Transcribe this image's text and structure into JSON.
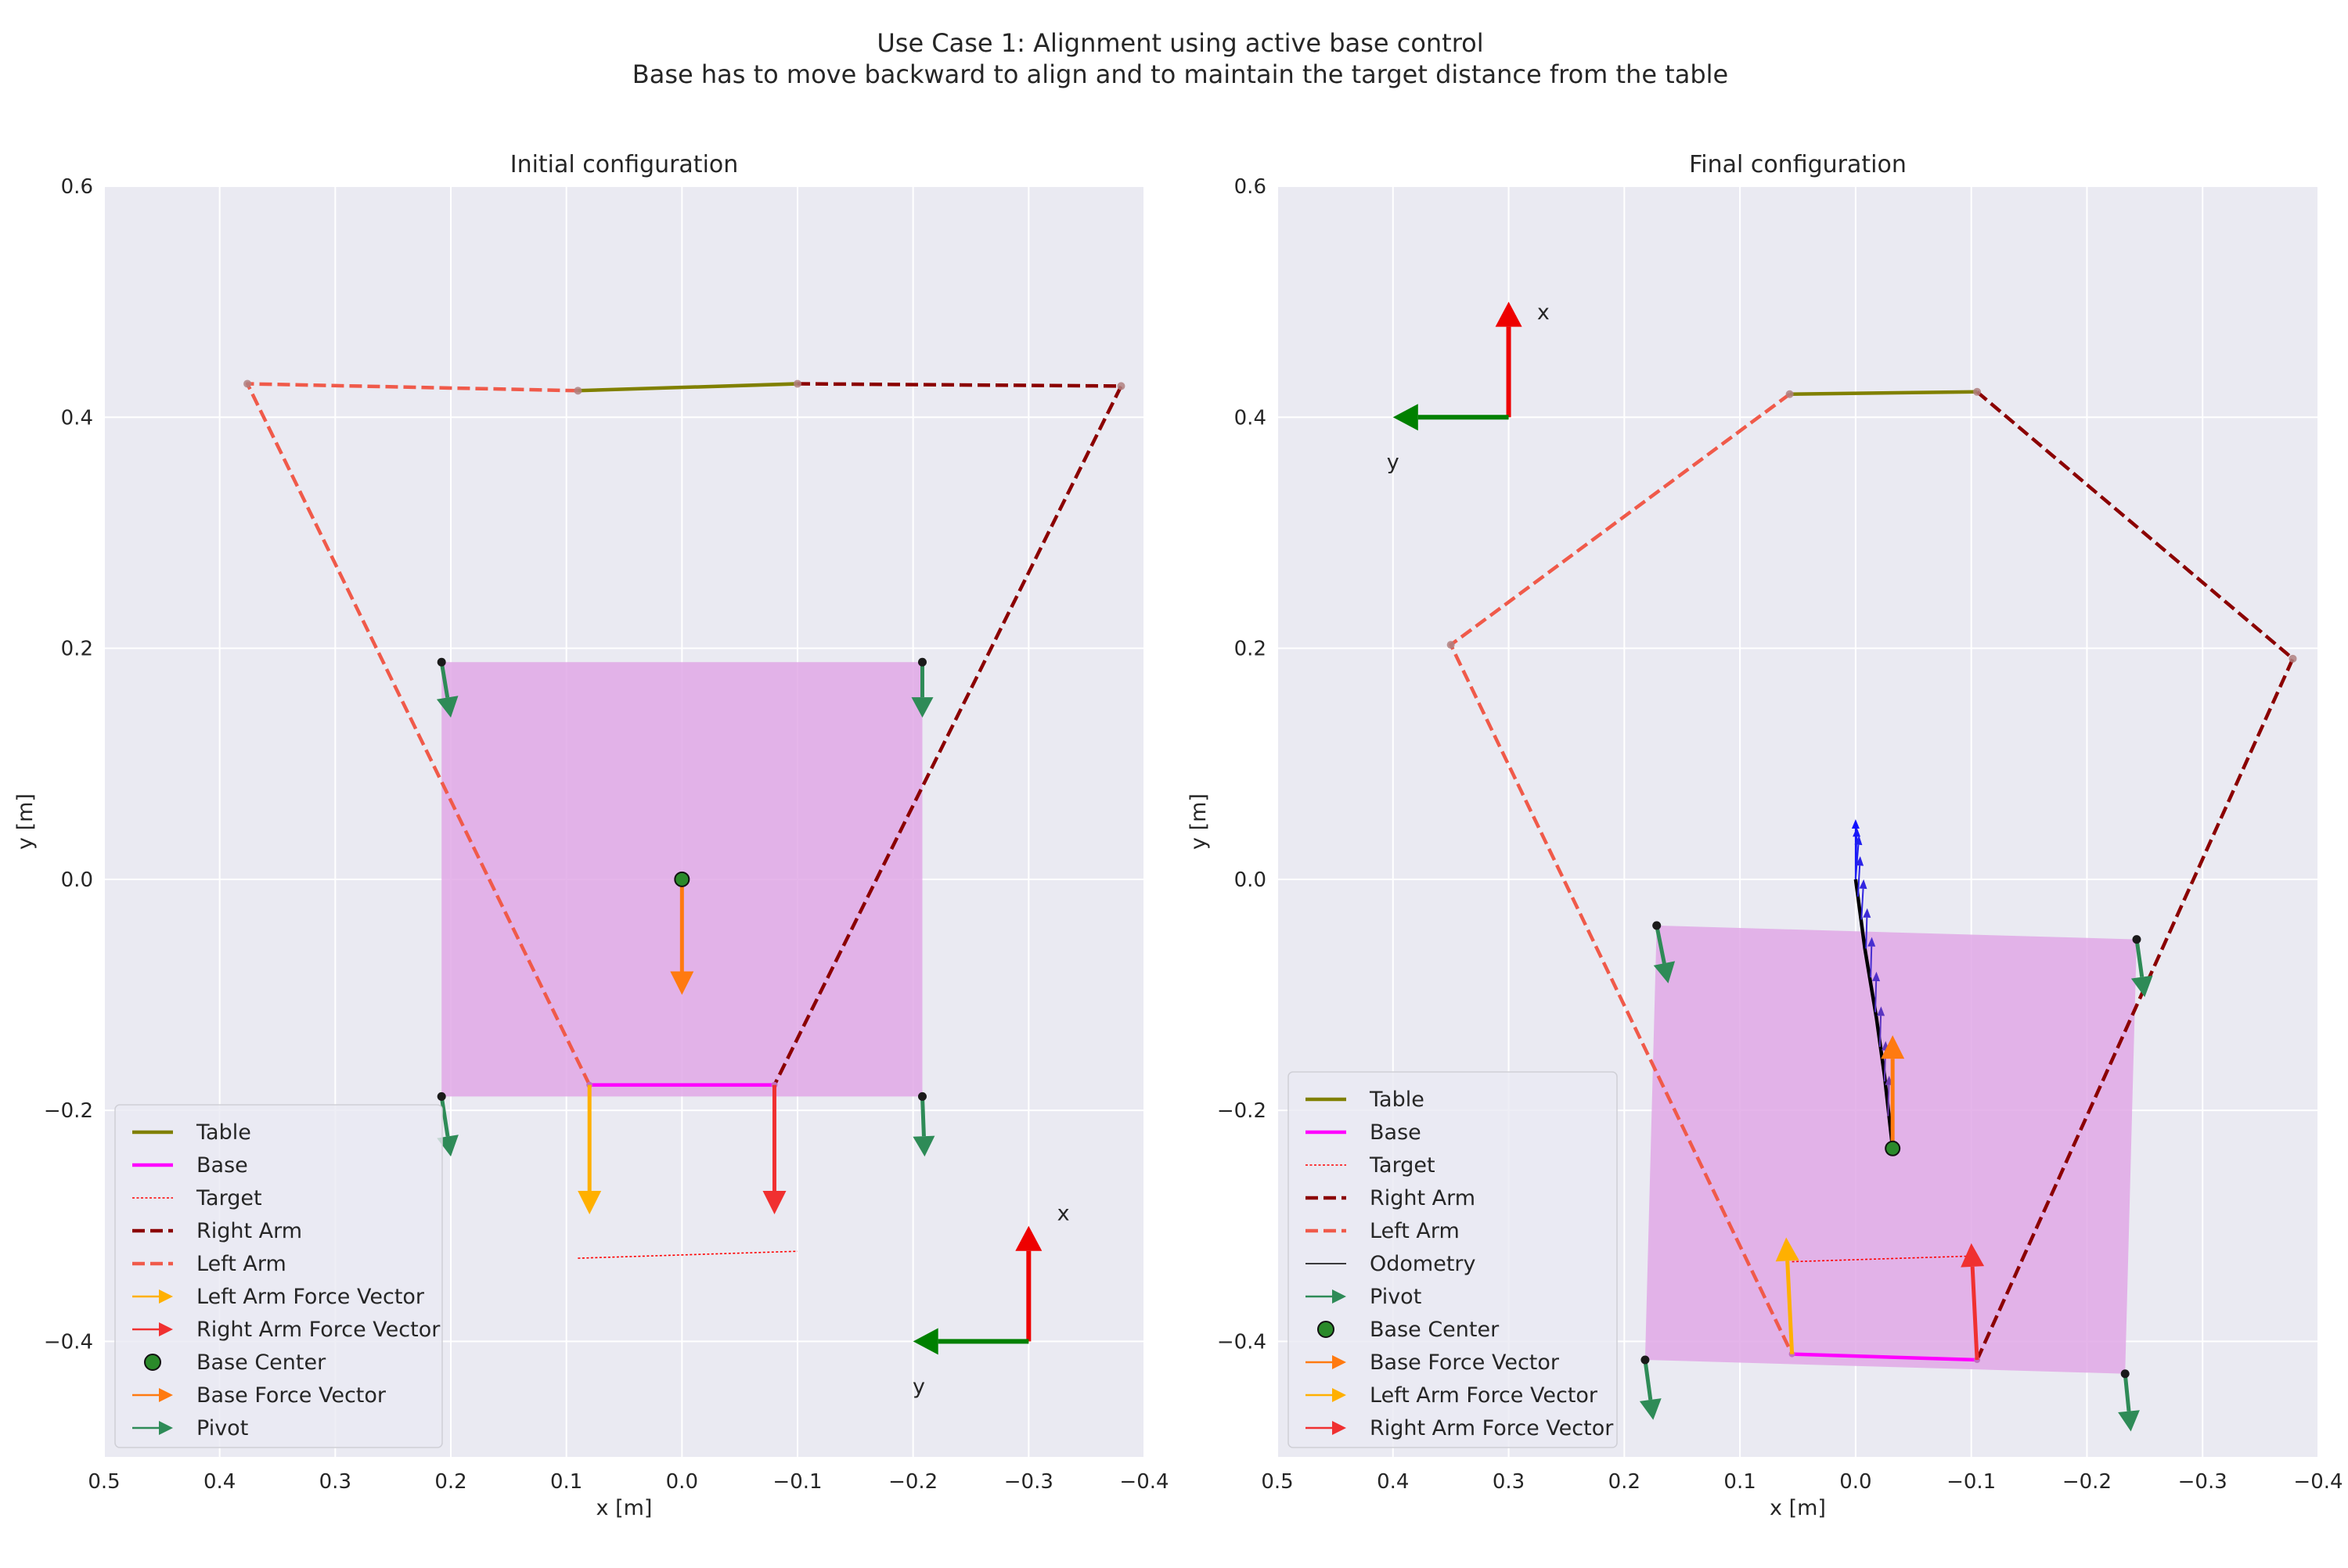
{
  "suptitle": {
    "line1": "Use Case 1: Alignment using active base control",
    "line2": "Base has to move backward to align and to maintain the target distance from the table"
  },
  "chart_data": [
    {
      "type": "line",
      "title": "Initial configuration",
      "xlabel": "x [m]",
      "ylabel": "y [m]",
      "xlim": [
        0.5,
        -0.4
      ],
      "ylim": [
        -0.5,
        0.6
      ],
      "x_ticks": [
        "0.5",
        "0.4",
        "0.3",
        "0.2",
        "0.1",
        "0.0",
        "−0.1",
        "−0.2",
        "−0.3",
        "−0.4"
      ],
      "y_ticks": [
        "−0.4",
        "−0.2",
        "0.0",
        "0.2",
        "0.4",
        "0.6"
      ],
      "grid": true,
      "legend_position": "lower-left",
      "base_area_color": "#e0a8e6",
      "base_area": [
        [
          0.208,
          0.188
        ],
        [
          -0.208,
          0.188
        ],
        [
          -0.208,
          -0.188
        ],
        [
          0.208,
          -0.188
        ]
      ],
      "series": [
        {
          "name": "Table",
          "color": "#808000",
          "style": "solid",
          "points": [
            [
              0.09,
              0.423
            ],
            [
              -0.1,
              0.429
            ]
          ]
        },
        {
          "name": "Base",
          "color": "#ff00ff",
          "style": "solid",
          "points": [
            [
              0.08,
              -0.178
            ],
            [
              -0.08,
              -0.178
            ]
          ]
        },
        {
          "name": "Target",
          "color": "#ff0000",
          "style": "dotted",
          "points": [
            [
              0.09,
              -0.328
            ],
            [
              -0.1,
              -0.322
            ]
          ]
        },
        {
          "name": "Right Arm",
          "color": "#8b0000",
          "style": "dashed",
          "points": [
            [
              -0.1,
              0.429
            ],
            [
              -0.38,
              0.427
            ],
            [
              -0.08,
              -0.178
            ]
          ]
        },
        {
          "name": "Left Arm",
          "color": "#f05a4a",
          "style": "dashed",
          "points": [
            [
              0.09,
              0.423
            ],
            [
              0.376,
              0.429
            ],
            [
              0.08,
              -0.178
            ]
          ]
        }
      ],
      "arrows": [
        {
          "name": "Left Arm Force Vector",
          "color": "#ffb000",
          "start": [
            0.08,
            -0.178
          ],
          "end": [
            0.08,
            -0.29
          ]
        },
        {
          "name": "Right Arm Force Vector",
          "color": "#f03030",
          "start": [
            -0.08,
            -0.178
          ],
          "end": [
            -0.08,
            -0.29
          ]
        },
        {
          "name": "Base Force Vector",
          "color": "#ff7a10",
          "start": [
            0.0,
            0.0
          ],
          "end": [
            0.0,
            -0.1
          ]
        },
        {
          "name": "Pivot",
          "color": "#2e8b57",
          "start": [
            0.208,
            0.188
          ],
          "end": [
            0.2,
            0.14
          ]
        },
        {
          "name": "Pivot",
          "color": "#2e8b57",
          "start": [
            -0.208,
            0.188
          ],
          "end": [
            -0.208,
            0.14
          ]
        },
        {
          "name": "Pivot",
          "color": "#2e8b57",
          "start": [
            0.208,
            -0.188
          ],
          "end": [
            0.2,
            -0.24
          ]
        },
        {
          "name": "Pivot",
          "color": "#2e8b57",
          "start": [
            -0.208,
            -0.188
          ],
          "end": [
            -0.21,
            -0.24
          ]
        }
      ],
      "pivot_points": [
        [
          0.208,
          0.188
        ],
        [
          -0.208,
          0.188
        ],
        [
          0.208,
          -0.188
        ],
        [
          -0.208,
          -0.188
        ]
      ],
      "endpoint_markers": [
        [
          0.09,
          0.423
        ],
        [
          -0.1,
          0.429
        ],
        [
          0.376,
          0.429
        ],
        [
          -0.38,
          0.427
        ]
      ],
      "base_center": [
        0.0,
        0.0
      ],
      "frame": {
        "origin": [
          -0.3,
          -0.4
        ],
        "x_axis_end": [
          -0.3,
          -0.3
        ],
        "y_axis_end": [
          -0.2,
          -0.4
        ],
        "x_label_pos": [
          -0.33,
          -0.295
        ],
        "y_label_pos": [
          -0.205,
          -0.445
        ]
      },
      "legend": [
        {
          "label": "Table",
          "kind": "line",
          "color": "#808000",
          "style": "solid"
        },
        {
          "label": "Base",
          "kind": "line",
          "color": "#ff00ff",
          "style": "solid"
        },
        {
          "label": "Target",
          "kind": "line",
          "color": "#ff0000",
          "style": "dotted"
        },
        {
          "label": "Right Arm",
          "kind": "line",
          "color": "#8b0000",
          "style": "dashed"
        },
        {
          "label": "Left Arm",
          "kind": "line",
          "color": "#f05a4a",
          "style": "dashed"
        },
        {
          "label": "Left Arm Force Vector",
          "kind": "arrow",
          "color": "#ffb000"
        },
        {
          "label": "Right Arm Force Vector",
          "kind": "arrow",
          "color": "#f03030"
        },
        {
          "label": "Base Center",
          "kind": "marker",
          "color": "#2a8a2a"
        },
        {
          "label": "Base Force Vector",
          "kind": "arrow",
          "color": "#ff7a10"
        },
        {
          "label": "Pivot",
          "kind": "arrow",
          "color": "#2e8b57"
        }
      ]
    },
    {
      "type": "line",
      "title": "Final configuration",
      "xlabel": "x [m]",
      "ylabel": "y [m]",
      "xlim": [
        0.5,
        -0.4
      ],
      "ylim": [
        -0.5,
        0.6
      ],
      "x_ticks": [
        "0.5",
        "0.4",
        "0.3",
        "0.2",
        "0.1",
        "0.0",
        "−0.1",
        "−0.2",
        "−0.3",
        "−0.4"
      ],
      "y_ticks": [
        "−0.4",
        "−0.2",
        "0.0",
        "0.2",
        "0.4",
        "0.6"
      ],
      "grid": true,
      "legend_position": "lower-left",
      "base_area_color": "#e0a8e6",
      "base_area": [
        [
          0.172,
          -0.04
        ],
        [
          -0.243,
          -0.052
        ],
        [
          -0.233,
          -0.428
        ],
        [
          0.182,
          -0.416
        ]
      ],
      "series": [
        {
          "name": "Table",
          "color": "#808000",
          "style": "solid",
          "points": [
            [
              0.057,
              0.42
            ],
            [
              -0.105,
              0.422
            ]
          ]
        },
        {
          "name": "Base",
          "color": "#ff00ff",
          "style": "solid",
          "points": [
            [
              0.055,
              -0.411
            ],
            [
              -0.105,
              -0.416
            ]
          ]
        },
        {
          "name": "Target",
          "color": "#ff0000",
          "style": "dotted",
          "points": [
            [
              0.055,
              -0.331
            ],
            [
              -0.105,
              -0.326
            ]
          ]
        },
        {
          "name": "Right Arm",
          "color": "#8b0000",
          "style": "dashed",
          "points": [
            [
              -0.105,
              0.422
            ],
            [
              -0.378,
              0.191
            ],
            [
              -0.105,
              -0.416
            ]
          ]
        },
        {
          "name": "Left Arm",
          "color": "#f05a4a",
          "style": "dashed",
          "points": [
            [
              0.057,
              0.42
            ],
            [
              0.35,
              0.203
            ],
            [
              0.055,
              -0.411
            ]
          ]
        },
        {
          "name": "Odometry",
          "color": "#000000",
          "style": "solid",
          "points": [
            [
              0.0,
              0.0
            ],
            [
              -0.008,
              -0.06
            ],
            [
              -0.018,
              -0.12
            ],
            [
              -0.025,
              -0.17
            ],
            [
              -0.032,
              -0.233
            ]
          ]
        }
      ],
      "arrows": [
        {
          "name": "Left Arm Force Vector",
          "color": "#ffb000",
          "start": [
            0.055,
            -0.411
          ],
          "end": [
            0.06,
            -0.31
          ]
        },
        {
          "name": "Right Arm Force Vector",
          "color": "#f03030",
          "start": [
            -0.105,
            -0.416
          ],
          "end": [
            -0.1,
            -0.315
          ]
        },
        {
          "name": "Base Force Vector",
          "color": "#ff7a10",
          "start": [
            -0.032,
            -0.233
          ],
          "end": [
            -0.032,
            -0.135
          ]
        },
        {
          "name": "Pivot",
          "color": "#2e8b57",
          "start": [
            0.172,
            -0.04
          ],
          "end": [
            0.162,
            -0.09
          ]
        },
        {
          "name": "Pivot",
          "color": "#2e8b57",
          "start": [
            -0.243,
            -0.052
          ],
          "end": [
            -0.25,
            -0.102
          ]
        },
        {
          "name": "Pivot",
          "color": "#2e8b57",
          "start": [
            0.182,
            -0.416
          ],
          "end": [
            0.175,
            -0.468
          ]
        },
        {
          "name": "Pivot",
          "color": "#2e8b57",
          "start": [
            -0.233,
            -0.428
          ],
          "end": [
            -0.238,
            -0.478
          ]
        }
      ],
      "trail_arrows": [
        {
          "start": [
            0.0,
            0.0
          ],
          "end": [
            0.0,
            0.052
          ],
          "color": "#1010ff"
        },
        {
          "start": [
            0.0,
            0.0
          ],
          "end": [
            -0.001,
            0.045
          ],
          "color": "#1818f8"
        },
        {
          "start": [
            0.0,
            0.0
          ],
          "end": [
            -0.003,
            0.038
          ],
          "color": "#2020f0"
        },
        {
          "start": [
            -0.002,
            -0.015
          ],
          "end": [
            -0.004,
            0.02
          ],
          "color": "#2a22e8"
        },
        {
          "start": [
            -0.005,
            -0.035
          ],
          "end": [
            -0.007,
            0.0
          ],
          "color": "#3326e0"
        },
        {
          "start": [
            -0.009,
            -0.06
          ],
          "end": [
            -0.01,
            -0.025
          ],
          "color": "#3c2ad8"
        },
        {
          "start": [
            -0.013,
            -0.085
          ],
          "end": [
            -0.014,
            -0.05
          ],
          "color": "#462ed0"
        },
        {
          "start": [
            -0.017,
            -0.115
          ],
          "end": [
            -0.018,
            -0.08
          ],
          "color": "#5030c8"
        },
        {
          "start": [
            -0.021,
            -0.145
          ],
          "end": [
            -0.022,
            -0.11
          ],
          "color": "#5a34c0"
        },
        {
          "start": [
            -0.025,
            -0.175
          ],
          "end": [
            -0.026,
            -0.14
          ],
          "color": "#6438b8"
        },
        {
          "start": [
            -0.028,
            -0.205
          ],
          "end": [
            -0.029,
            -0.17
          ],
          "color": "#6e3cb0"
        }
      ],
      "pivot_points": [
        [
          0.172,
          -0.04
        ],
        [
          -0.243,
          -0.052
        ],
        [
          0.182,
          -0.416
        ],
        [
          -0.233,
          -0.428
        ]
      ],
      "endpoint_markers": [
        [
          0.057,
          0.42
        ],
        [
          -0.105,
          0.422
        ],
        [
          0.35,
          0.203
        ],
        [
          -0.378,
          0.191
        ]
      ],
      "base_center": [
        -0.032,
        -0.233
      ],
      "frame": {
        "origin": [
          0.3,
          0.4
        ],
        "x_axis_end": [
          0.3,
          0.5
        ],
        "y_axis_end": [
          0.4,
          0.4
        ],
        "x_label_pos": [
          0.27,
          0.485
        ],
        "y_label_pos": [
          0.4,
          0.355
        ]
      },
      "legend": [
        {
          "label": "Table",
          "kind": "line",
          "color": "#808000",
          "style": "solid"
        },
        {
          "label": "Base",
          "kind": "line",
          "color": "#ff00ff",
          "style": "solid"
        },
        {
          "label": "Target",
          "kind": "line",
          "color": "#ff0000",
          "style": "dotted"
        },
        {
          "label": "Right Arm",
          "kind": "line",
          "color": "#8b0000",
          "style": "dashed"
        },
        {
          "label": "Left Arm",
          "kind": "line",
          "color": "#f05a4a",
          "style": "dashed"
        },
        {
          "label": "Odometry",
          "kind": "line",
          "color": "#000000",
          "style": "thin"
        },
        {
          "label": "Pivot",
          "kind": "arrow",
          "color": "#2e8b57"
        },
        {
          "label": "Base Center",
          "kind": "marker",
          "color": "#2a8a2a"
        },
        {
          "label": "Base Force Vector",
          "kind": "arrow",
          "color": "#ff7a10"
        },
        {
          "label": "Left Arm Force Vector",
          "kind": "arrow",
          "color": "#ffb000"
        },
        {
          "label": "Right Arm Force Vector",
          "kind": "arrow",
          "color": "#f03030"
        }
      ]
    }
  ],
  "frame_labels": {
    "x": "x",
    "y": "y"
  }
}
